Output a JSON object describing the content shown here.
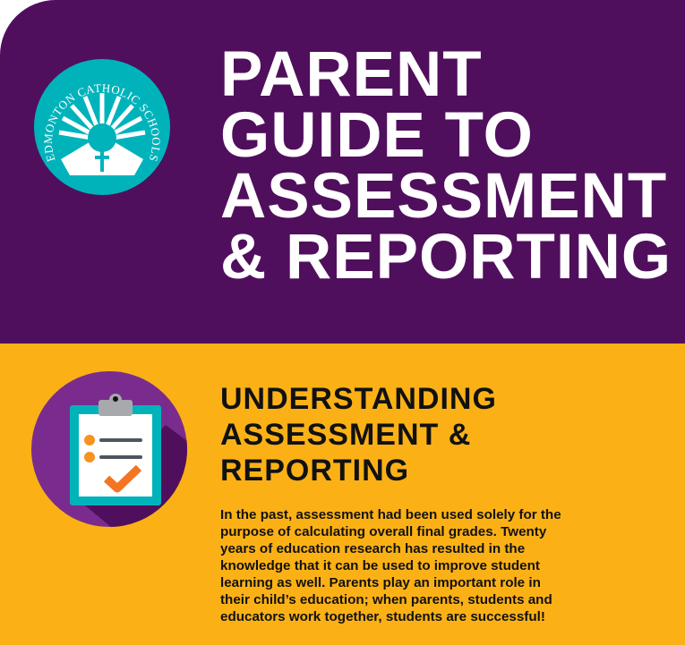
{
  "header": {
    "title_lines": [
      "PARENT",
      "GUIDE TO",
      "ASSESSMENT",
      "& REPORTING"
    ],
    "logo_text": "EDMONTON CATHOLIC SCHOOLS",
    "background_color": "#500f5c",
    "logo_color": "#00b3bb"
  },
  "section": {
    "heading_lines": [
      "UNDERSTANDING",
      "ASSESSMENT &",
      "REPORTING"
    ],
    "body_lines": [
      "In the past, assessment had been used solely for the",
      "purpose of calculating overall final grades. Twenty",
      "years of education research has resulted in the",
      "knowledge that it can be used to improve student",
      "learning as well. Parents play an important role in",
      "their child’s education; when parents, students and",
      "educators work together, students are successful!"
    ],
    "icon": "clipboard-checklist-icon",
    "background_color": "#fbb116"
  }
}
